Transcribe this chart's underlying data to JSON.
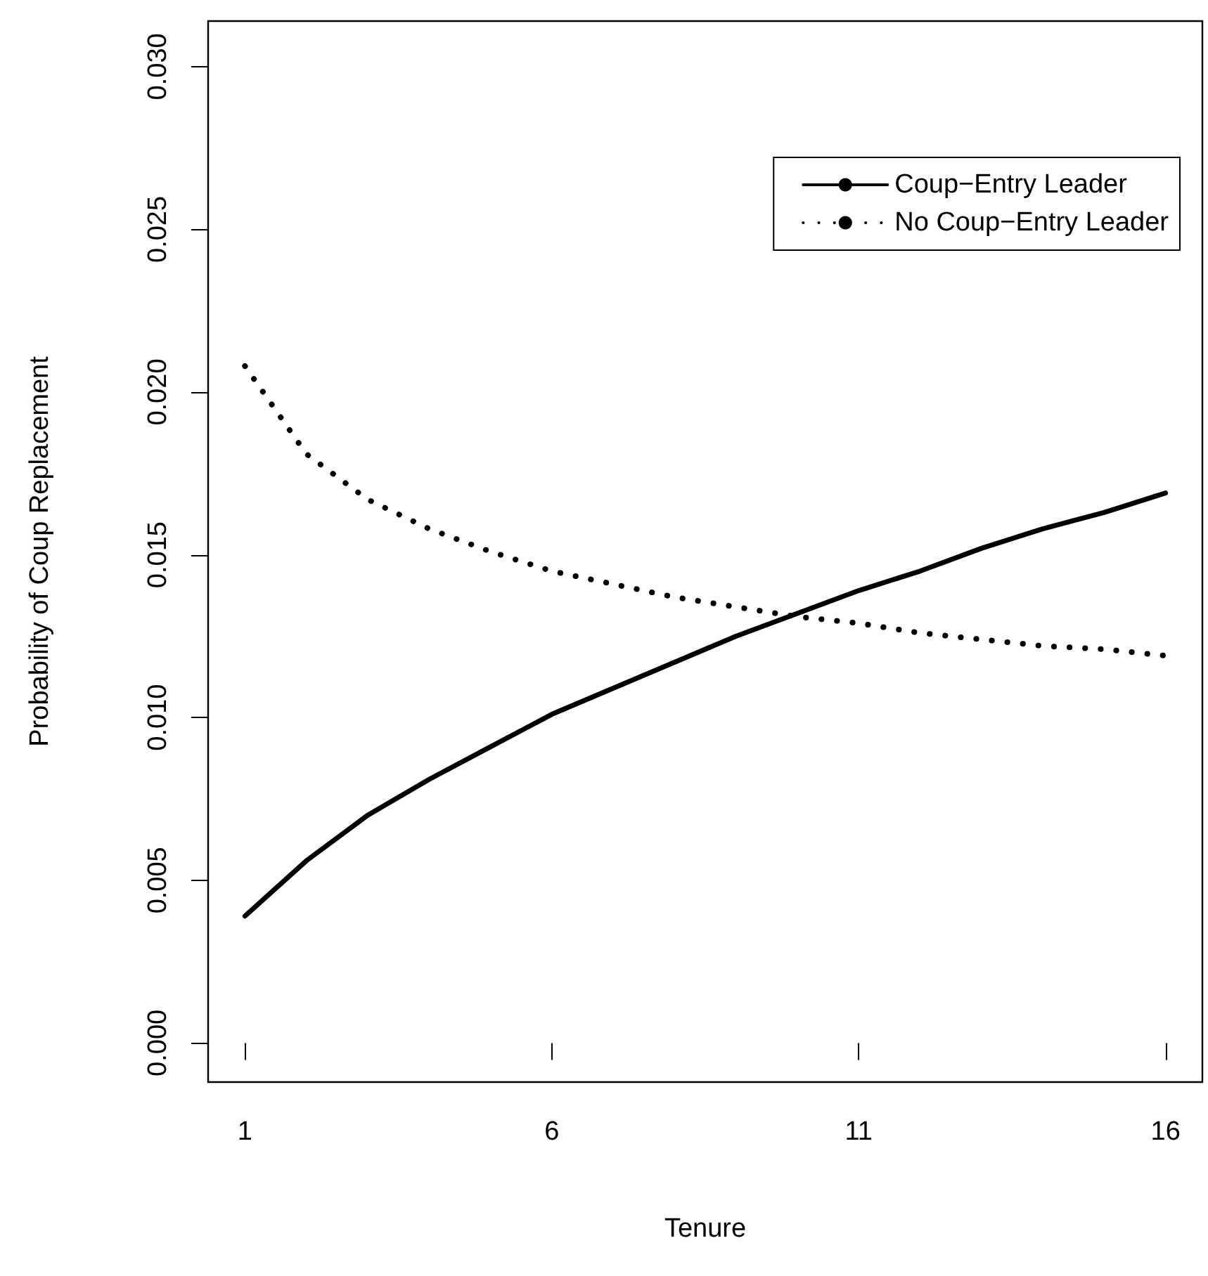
{
  "chart_data": {
    "type": "line",
    "xlabel": "Tenure",
    "ylabel": "Probability of Coup Replacement",
    "x": [
      1,
      2,
      3,
      4,
      5,
      6,
      7,
      8,
      9,
      10,
      11,
      12,
      13,
      14,
      15,
      16
    ],
    "series": [
      {
        "name": "Coup−Entry Leader",
        "color": "#000000",
        "line_style": "solid",
        "values": [
          0.0039,
          0.0056,
          0.007,
          0.0081,
          0.0091,
          0.0101,
          0.0109,
          0.0117,
          0.0125,
          0.0132,
          0.0139,
          0.0145,
          0.0152,
          0.0158,
          0.0163,
          0.0169
        ]
      },
      {
        "name": "No Coup−Entry Leader",
        "color": "#000000",
        "line_style": "dotted",
        "values": [
          0.0208,
          0.0181,
          0.0167,
          0.0158,
          0.0151,
          0.0145,
          0.0141,
          0.0137,
          0.0134,
          0.0131,
          0.0129,
          0.0126,
          0.0124,
          0.0122,
          0.0121,
          0.0119
        ]
      }
    ],
    "xlim": [
      0.4,
      16.6
    ],
    "xticks": [
      1,
      6,
      11,
      16
    ],
    "ylim": [
      -0.0012,
      0.0314
    ],
    "yticks": [
      {
        "value": 0,
        "label": "0.000"
      },
      {
        "value": 0.005,
        "label": "0.005"
      },
      {
        "value": 0.01,
        "label": "0.010"
      },
      {
        "value": 0.015,
        "label": "0.015"
      },
      {
        "value": 0.02,
        "label": "0.020"
      },
      {
        "value": 0.025,
        "label": "0.025"
      },
      {
        "value": 0.03,
        "label": "0.030"
      }
    ],
    "grid": false,
    "legend": "top right",
    "marker": "none"
  }
}
